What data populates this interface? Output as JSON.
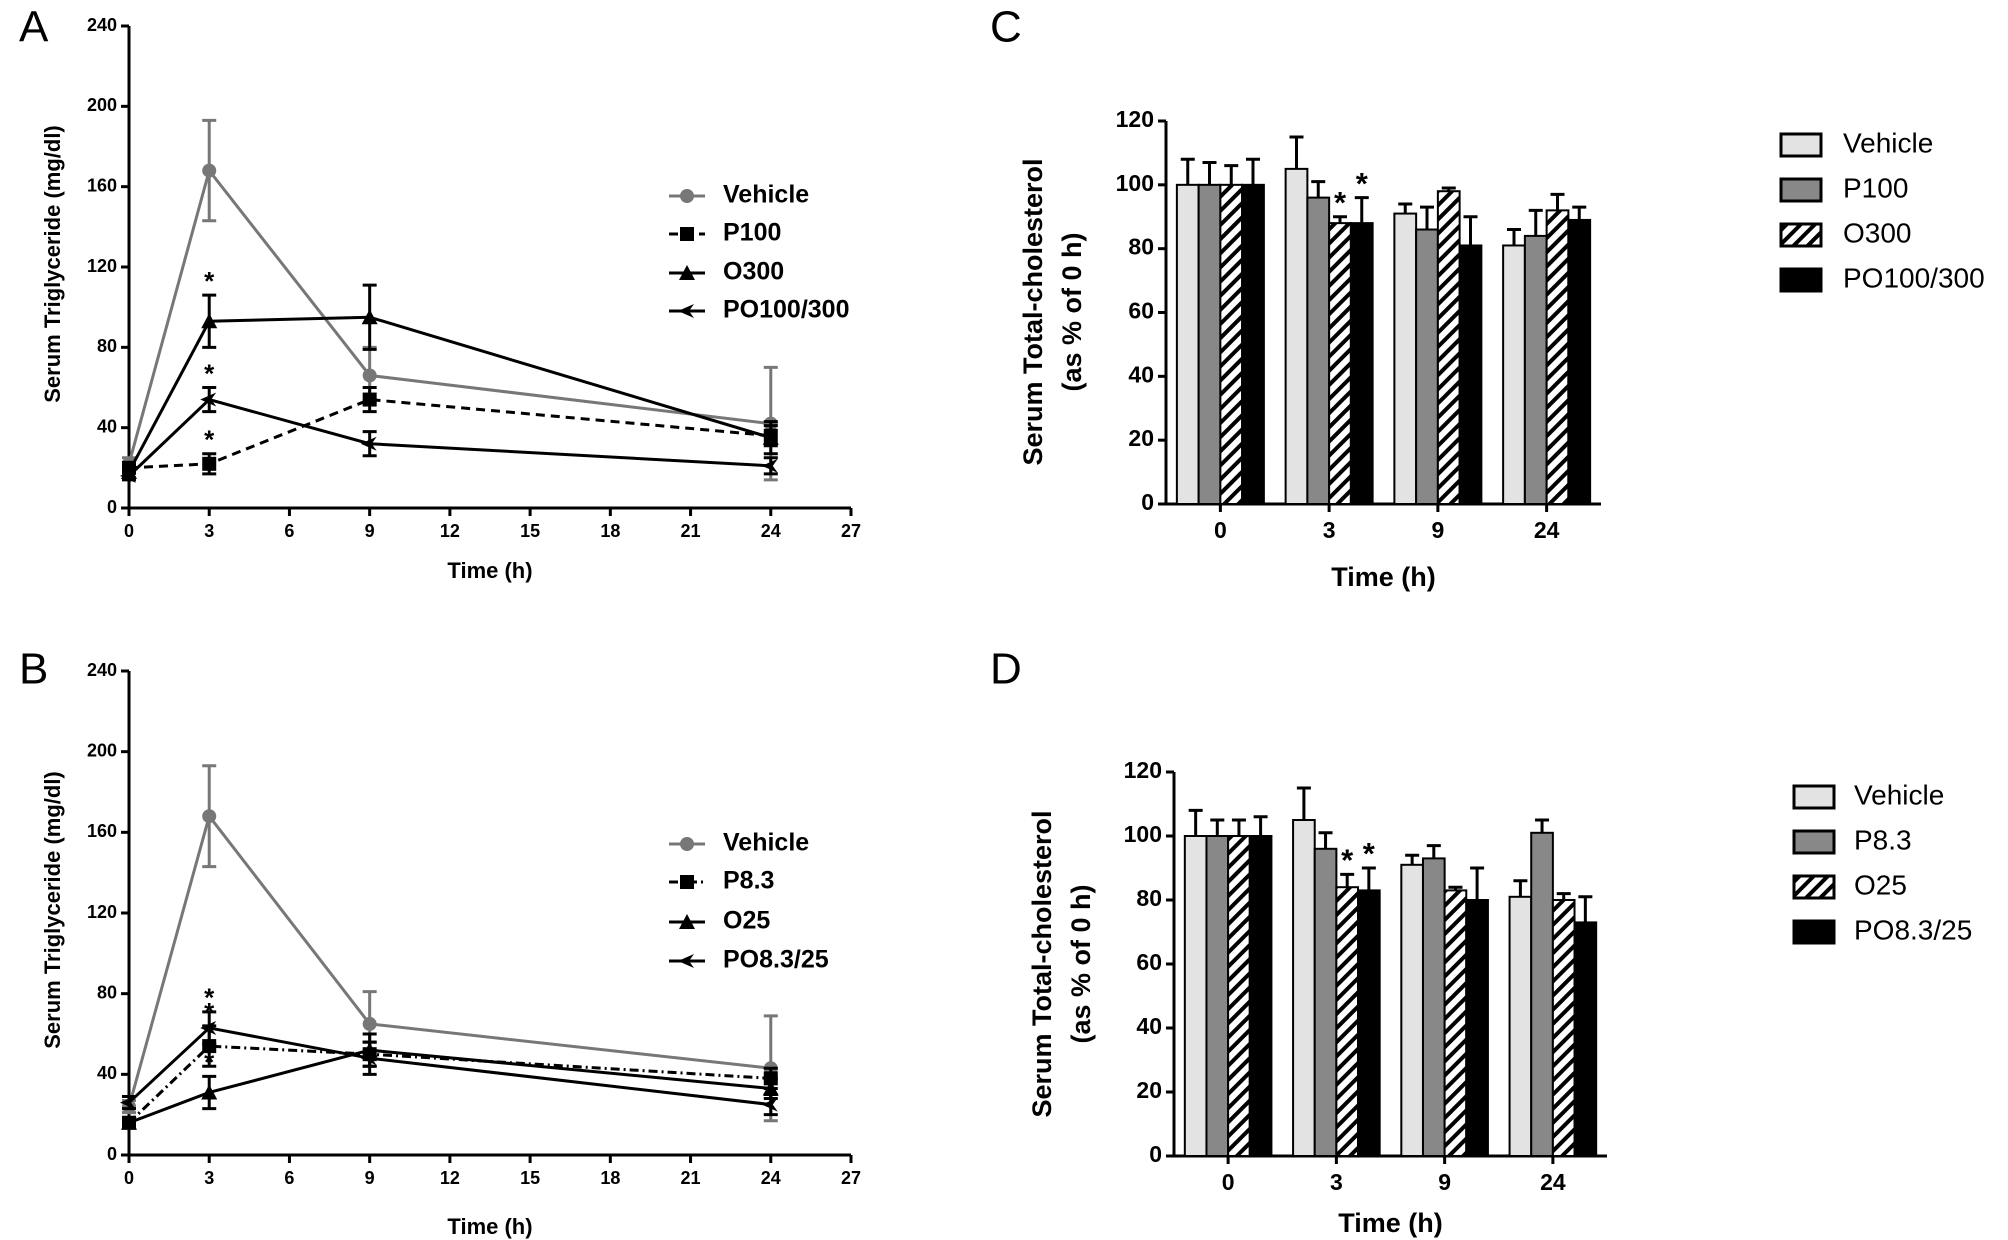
{
  "chart_data": [
    {
      "type": "line",
      "label": "A",
      "y_label": [
        "Serum Triglyceride  (mg/dl)"
      ],
      "x_label": "Time (h)",
      "x": [
        0,
        3,
        9,
        24
      ],
      "xlim": [
        0,
        27
      ],
      "xticks": [
        0,
        3,
        6,
        9,
        12,
        15,
        18,
        21,
        24,
        27
      ],
      "ylim": [
        0,
        240
      ],
      "yticks": [
        0,
        40,
        80,
        120,
        160,
        200,
        240
      ],
      "series": [
        {
          "name": "Vehicle",
          "color": "#777777",
          "dash": null,
          "marker": "circle",
          "values": [
            22,
            168,
            66,
            42
          ],
          "errors": [
            3,
            25,
            14,
            28
          ],
          "annotations": [
            null,
            null,
            null,
            null
          ]
        },
        {
          "name": "P100",
          "color": "#000000",
          "dash": "9,6",
          "marker": "square",
          "values": [
            20,
            22,
            54,
            36
          ],
          "errors": [
            2,
            5,
            6,
            5
          ],
          "annotations": [
            null,
            "*",
            null,
            null
          ]
        },
        {
          "name": "O300",
          "color": "#000000",
          "dash": null,
          "marker": "triangle",
          "values": [
            18,
            93,
            95,
            35
          ],
          "errors": [
            3,
            13,
            16,
            8
          ],
          "annotations": [
            null,
            "*",
            null,
            null
          ]
        },
        {
          "name": "PO100/300",
          "color": "#000000",
          "dash": null,
          "marker": "arrow",
          "values": [
            16,
            54,
            32,
            21
          ],
          "errors": [
            2,
            6,
            6,
            4
          ],
          "annotations": [
            null,
            "*",
            null,
            null
          ]
        }
      ]
    },
    {
      "type": "line",
      "label": "B",
      "y_label": [
        "Serum Triglyceride  (mg/dl)"
      ],
      "x_label": "Time (h)",
      "x": [
        0,
        3,
        9,
        24
      ],
      "xlim": [
        0,
        27
      ],
      "xticks": [
        0,
        3,
        6,
        9,
        12,
        15,
        18,
        21,
        24,
        27
      ],
      "ylim": [
        0,
        240
      ],
      "yticks": [
        0,
        40,
        80,
        120,
        160,
        200,
        240
      ],
      "series": [
        {
          "name": "Vehicle",
          "color": "#777777",
          "dash": null,
          "marker": "circle",
          "values": [
            24,
            168,
            65,
            43
          ],
          "errors": [
            3,
            25,
            16,
            26
          ],
          "annotations": [
            null,
            null,
            null,
            null
          ]
        },
        {
          "name": "P8.3",
          "color": "#000000",
          "dash": "9,4,2,4",
          "marker": "square",
          "values": [
            16,
            54,
            50,
            38
          ],
          "errors": [
            2,
            10,
            6,
            5
          ],
          "annotations": [
            null,
            "*",
            null,
            null
          ]
        },
        {
          "name": "O25",
          "color": "#000000",
          "dash": null,
          "marker": "triangle",
          "values": [
            16,
            31,
            52,
            33
          ],
          "errors": [
            2,
            8,
            8,
            5
          ],
          "annotations": [
            null,
            "*",
            null,
            null
          ]
        },
        {
          "name": "PO8.3/25",
          "color": "#000000",
          "dash": null,
          "marker": "arrow",
          "values": [
            26,
            63,
            48,
            25
          ],
          "errors": [
            3,
            8,
            8,
            5
          ],
          "annotations": [
            null,
            "*",
            null,
            null
          ]
        }
      ]
    },
    {
      "type": "bar",
      "label": "C",
      "y_label": [
        "Serum Total-cholesterol",
        "(as % of 0 h)"
      ],
      "x_label": "Time (h)",
      "categories": [
        "0",
        "3",
        "9",
        "24"
      ],
      "ylim": [
        0,
        120
      ],
      "yticks": [
        0,
        20,
        40,
        60,
        80,
        100,
        120
      ],
      "series": [
        {
          "name": "Vehicle",
          "color": "#e3e3e3",
          "pattern": null,
          "values": [
            100,
            105,
            91,
            81
          ],
          "errors": [
            8,
            10,
            3,
            5
          ],
          "annotations": [
            null,
            null,
            null,
            null
          ]
        },
        {
          "name": "P100",
          "color": "#888888",
          "pattern": null,
          "values": [
            100,
            96,
            86,
            84
          ],
          "errors": [
            7,
            5,
            7,
            8
          ],
          "annotations": [
            null,
            null,
            null,
            null
          ]
        },
        {
          "name": "O300",
          "color": "#ffffff",
          "pattern": "hatch",
          "values": [
            100,
            88,
            98,
            92
          ],
          "errors": [
            6,
            2,
            1,
            5
          ],
          "annotations": [
            null,
            "*",
            null,
            null
          ]
        },
        {
          "name": "PO100/300",
          "color": "#000000",
          "pattern": null,
          "values": [
            100,
            88,
            81,
            89
          ],
          "errors": [
            8,
            8,
            9,
            4
          ],
          "annotations": [
            null,
            "*",
            null,
            null
          ]
        }
      ]
    },
    {
      "type": "bar",
      "label": "D",
      "y_label": [
        "Serum Total-cholesterol",
        "(as % of 0 h)"
      ],
      "x_label": "Time (h)",
      "categories": [
        "0",
        "3",
        "9",
        "24"
      ],
      "ylim": [
        0,
        120
      ],
      "yticks": [
        0,
        20,
        40,
        60,
        80,
        100,
        120
      ],
      "series": [
        {
          "name": "Vehicle",
          "color": "#e3e3e3",
          "pattern": null,
          "values": [
            100,
            105,
            91,
            81
          ],
          "errors": [
            8,
            10,
            3,
            5
          ],
          "annotations": [
            null,
            null,
            null,
            null
          ]
        },
        {
          "name": "P8.3",
          "color": "#888888",
          "pattern": null,
          "values": [
            100,
            96,
            93,
            101
          ],
          "errors": [
            5,
            5,
            4,
            4
          ],
          "annotations": [
            null,
            null,
            null,
            null
          ]
        },
        {
          "name": "O25",
          "color": "#ffffff",
          "pattern": "hatch",
          "values": [
            100,
            84,
            83,
            80
          ],
          "errors": [
            5,
            4,
            1,
            2
          ],
          "annotations": [
            null,
            "*",
            null,
            null
          ]
        },
        {
          "name": "PO8.3/25",
          "color": "#000000",
          "pattern": null,
          "values": [
            100,
            83,
            80,
            73
          ],
          "errors": [
            6,
            7,
            10,
            8
          ],
          "annotations": [
            null,
            "*",
            null,
            null
          ]
        }
      ]
    }
  ]
}
